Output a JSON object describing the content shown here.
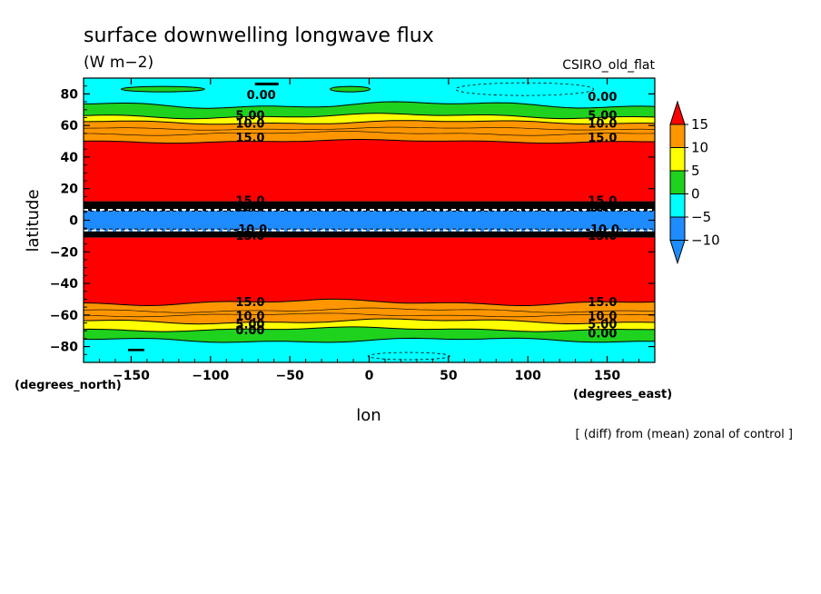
{
  "chart_data": {
    "type": "contour",
    "title": "surface downwelling longwave flux",
    "units": "(W m−2)",
    "model": "CSIRO_old_flat",
    "xlabel": "lon",
    "ylabel": "latitude",
    "x_unit": "(degrees_east)",
    "y_unit": "(degrees_north)",
    "note": "[ (diff) from (mean) zonal of control ]",
    "xlim": [
      -180,
      180
    ],
    "ylim": [
      -90,
      90
    ],
    "x_ticks": [
      -150,
      -100,
      -50,
      0,
      50,
      100,
      150
    ],
    "x_tick_labels": [
      "−150",
      "−100",
      "−50",
      "0",
      "50",
      "100",
      "150"
    ],
    "y_ticks": [
      -80,
      -60,
      -40,
      -20,
      0,
      20,
      40,
      60,
      80
    ],
    "y_tick_labels": [
      "−80",
      "−60",
      "−40",
      "−20",
      "0",
      "20",
      "40",
      "60",
      "80"
    ],
    "levels": [
      -10,
      -5,
      0,
      5,
      10,
      15
    ],
    "legend_labels": [
      "15",
      "10",
      "5",
      "0",
      "−5",
      "−10"
    ],
    "colors": {
      "lt_neg10": "#1e8cff",
      "neg10_neg5": "#1e8cff",
      "neg5_0": "#00ffff",
      "b0_5": "#1ed21e",
      "b5_10": "#ffff00",
      "b10_15": "#ff9600",
      "gt_15": "#ff0000",
      "black_band": "#000000"
    },
    "zonal_bands": [
      {
        "lat_min": -90,
        "lat_max": -76,
        "range": "-5 to 0"
      },
      {
        "lat_min": -76,
        "lat_max": -69,
        "range": "0 to 5"
      },
      {
        "lat_min": -69,
        "lat_max": -64,
        "range": "5 to 10"
      },
      {
        "lat_min": -64,
        "lat_max": -52,
        "range": "10 to 15"
      },
      {
        "lat_min": -52,
        "lat_max": -11,
        "range": "> 15"
      },
      {
        "lat_min": -11,
        "lat_max": -7,
        "range": "steep gradient (contours)"
      },
      {
        "lat_min": -7,
        "lat_max": 6,
        "range": "-10 to -5"
      },
      {
        "lat_min": 6,
        "lat_max": 12,
        "range": "steep gradient (contours)"
      },
      {
        "lat_min": 12,
        "lat_max": 50,
        "range": "> 15"
      },
      {
        "lat_min": 50,
        "lat_max": 62,
        "range": "10 to 15"
      },
      {
        "lat_min": 62,
        "lat_max": 66,
        "range": "5 to 10"
      },
      {
        "lat_min": 66,
        "lat_max": 73,
        "range": "0 to 5"
      },
      {
        "lat_min": 73,
        "lat_max": 90,
        "range": "-5 to 0"
      }
    ],
    "contour_labels": [
      {
        "text": "0.00",
        "lon": -68,
        "lat": 79
      },
      {
        "text": "0.00",
        "lon": 147,
        "lat": 78
      },
      {
        "text": "5.00",
        "lon": -75,
        "lat": 66
      },
      {
        "text": "5.00",
        "lon": 147,
        "lat": 66
      },
      {
        "text": "10.0",
        "lon": -75,
        "lat": 61
      },
      {
        "text": "10.0",
        "lon": 147,
        "lat": 61
      },
      {
        "text": "15.0",
        "lon": -75,
        "lat": 52
      },
      {
        "text": "15.0",
        "lon": 147,
        "lat": 52
      },
      {
        "text": "15.0",
        "lon": -75,
        "lat": 12
      },
      {
        "text": "15.0",
        "lon": 147,
        "lat": 12
      },
      {
        "text": "10.0",
        "lon": -75,
        "lat": 8
      },
      {
        "text": "10.0",
        "lon": 147,
        "lat": 8
      },
      {
        "text": "-10.0",
        "lon": -75,
        "lat": -6
      },
      {
        "text": "-10.0",
        "lon": 147,
        "lat": -6
      },
      {
        "text": "15.0",
        "lon": -75,
        "lat": -10
      },
      {
        "text": "15.0",
        "lon": 147,
        "lat": -10
      },
      {
        "text": "15.0",
        "lon": -75,
        "lat": -52
      },
      {
        "text": "15.0",
        "lon": 147,
        "lat": -52
      },
      {
        "text": "10.0",
        "lon": -75,
        "lat": -61
      },
      {
        "text": "10.0",
        "lon": 147,
        "lat": -61
      },
      {
        "text": "5.00",
        "lon": -75,
        "lat": -66
      },
      {
        "text": "5.00",
        "lon": 147,
        "lat": -66
      },
      {
        "text": "0.00",
        "lon": -75,
        "lat": -70
      },
      {
        "text": "0.00",
        "lon": 147,
        "lat": -72
      }
    ]
  }
}
